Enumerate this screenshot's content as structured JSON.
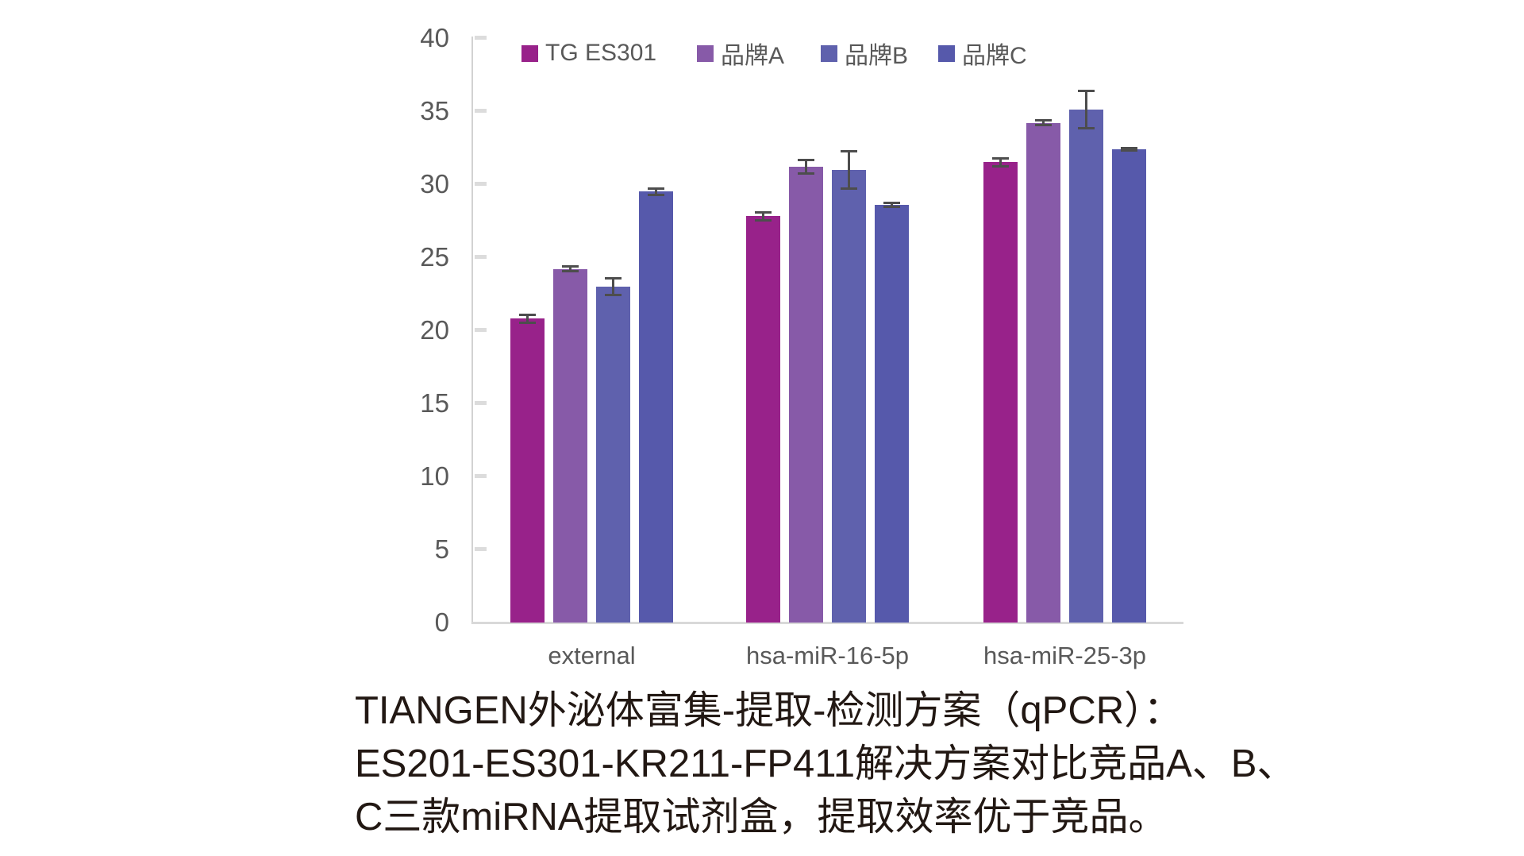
{
  "legend": {
    "items": [
      {
        "label": "TG ES301",
        "color": "#98228a"
      },
      {
        "label": "品牌A",
        "color": "#875aa8"
      },
      {
        "label": "品牌B",
        "color": "#5f61ad"
      },
      {
        "label": "品牌C",
        "color": "#5659ab"
      }
    ]
  },
  "chart_data": {
    "type": "bar",
    "title": "",
    "categories": [
      "external",
      "hsa-miR-16-5p",
      "hsa-miR-25-3p"
    ],
    "series": [
      {
        "name": "TG ES301",
        "color": "#98228a",
        "values": [
          20.8,
          27.8,
          31.5
        ],
        "errors": [
          0.3,
          0.3,
          0.3
        ]
      },
      {
        "name": "品牌A",
        "color": "#875aa8",
        "values": [
          24.2,
          31.2,
          34.2
        ],
        "errors": [
          0.2,
          0.5,
          0.2
        ]
      },
      {
        "name": "品牌B",
        "color": "#5f61ad",
        "values": [
          23.0,
          31.0,
          35.1
        ],
        "errors": [
          0.6,
          1.3,
          1.3
        ]
      },
      {
        "name": "品牌C",
        "color": "#5659ab",
        "values": [
          29.5,
          28.6,
          32.4
        ],
        "errors": [
          0.25,
          0.15,
          0.1
        ]
      }
    ],
    "xlabel": "",
    "ylabel": "",
    "ylim": [
      0,
      40
    ],
    "yticks": [
      0,
      5,
      10,
      15,
      20,
      25,
      30,
      35,
      40
    ],
    "grid": false,
    "error_bars": true,
    "legend_position": "top-inside"
  },
  "caption": {
    "lines": [
      "TIANGEN外泌体富集-提取-检测方案（qPCR）：",
      "ES201-ES301-KR211-FP411解决方案对比竞品A、B、",
      "C三款miRNA提取试剂盒，提取效率优于竞品。"
    ]
  },
  "colors": {
    "axis": "#d9d9d9",
    "tick_label": "#595959",
    "error_bar": "#4d4d4d",
    "caption_text": "#221813",
    "background": "#ffffff"
  }
}
